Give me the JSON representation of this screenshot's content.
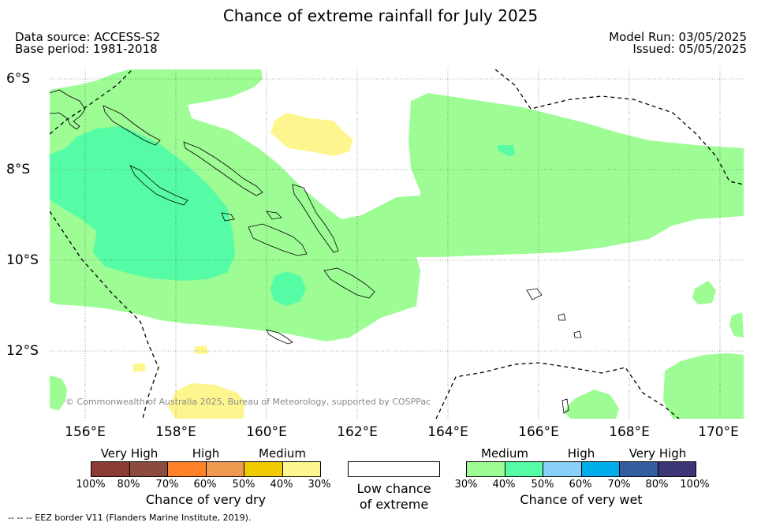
{
  "title": "Chance of extreme rainfall for July 2025",
  "meta": {
    "data_source": "Data source: ACCESS-S2",
    "base_period": "Base period: 1981-2018",
    "model_run": "Model Run: 03/05/2025",
    "issued": "Issued: 05/05/2025"
  },
  "map": {
    "lat_labels": [
      "6°S",
      "8°S",
      "10°S",
      "12°S"
    ],
    "lon_labels": [
      "156°E",
      "158°E",
      "160°E",
      "162°E",
      "164°E",
      "166°E",
      "168°E",
      "170°E"
    ],
    "copyright": "© Commonwealth of Australia 2025, Bureau of Meteorology, supported by COSPPac",
    "colors": {
      "wet_medium": "#9dfc94",
      "wet_high": "#55fba5",
      "dry_medium": "#fdf68e",
      "background": "#ffffff"
    }
  },
  "legend_dry": {
    "groups": [
      "Very High",
      "High",
      "Medium"
    ],
    "ticks": [
      "100%",
      "80%",
      "70%",
      "60%",
      "50%",
      "40%",
      "30%"
    ],
    "title": "Chance of very dry",
    "colors": [
      "#8b3a34",
      "#8c4b3e",
      "#ff8228",
      "#ee9a50",
      "#efcb00",
      "#fdf68e"
    ]
  },
  "legend_low": {
    "line1": "Low chance",
    "line2": "of extreme"
  },
  "legend_wet": {
    "groups": [
      "Medium",
      "High",
      "Very High"
    ],
    "ticks": [
      "30%",
      "40%",
      "50%",
      "60%",
      "70%",
      "80%",
      "100%"
    ],
    "title": "Chance of very wet",
    "colors": [
      "#9dfc94",
      "#55fba5",
      "#88cff9",
      "#00adeb",
      "#335d9e",
      "#3d3676"
    ]
  },
  "footnote": "--  --  -- EEZ border V11 (Flanders Marine Institute, 2019)."
}
